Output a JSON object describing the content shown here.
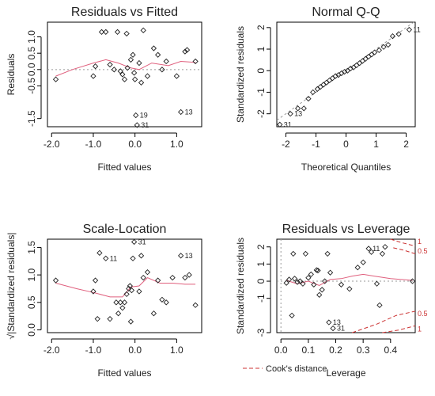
{
  "colors": {
    "points": "#222222",
    "smooth": "#e0607e",
    "reference": "#999999",
    "cook": "#cc3333"
  },
  "chart_data": [
    {
      "type": "scatter",
      "title": "Residuals vs Fitted",
      "xlabel": "Fitted values",
      "ylabel": "Residuals",
      "xlim": [
        -2.1,
        1.6
      ],
      "ylim": [
        -1.75,
        1.45
      ],
      "xticks": [
        -2.0,
        -1.0,
        0.0,
        1.0
      ],
      "xtick_labels": [
        "-2.0",
        "-1.0",
        "0.0",
        "1.0"
      ],
      "yticks": [
        -1.5,
        -0.5,
        0.5,
        1.0
      ],
      "ytick_labels": [
        "-1.5",
        "-0.5",
        "0.5",
        "1.0"
      ],
      "yticks_extra": [
        0.0
      ],
      "ytick_labels_extra": [
        "0.0"
      ],
      "marker": "diamond",
      "points": [
        {
          "x": -1.9,
          "y": -0.3
        },
        {
          "x": -1.0,
          "y": -0.2
        },
        {
          "x": -0.95,
          "y": 0.1
        },
        {
          "x": -0.8,
          "y": 1.15
        },
        {
          "x": -0.6,
          "y": 0.15
        },
        {
          "x": -0.5,
          "y": 0.0
        },
        {
          "x": -0.42,
          "y": 1.15
        },
        {
          "x": -0.35,
          "y": -0.05
        },
        {
          "x": -0.3,
          "y": -0.15
        },
        {
          "x": -0.25,
          "y": -0.3
        },
        {
          "x": -0.2,
          "y": 1.1
        },
        {
          "x": -0.18,
          "y": 0.05
        },
        {
          "x": -0.1,
          "y": 0.3
        },
        {
          "x": -0.05,
          "y": 0.45
        },
        {
          "x": -0.02,
          "y": -0.1
        },
        {
          "x": 0.0,
          "y": -0.3
        },
        {
          "x": 0.02,
          "y": -1.4,
          "label": "19"
        },
        {
          "x": 0.05,
          "y": -1.7,
          "label": "31"
        },
        {
          "x": 0.1,
          "y": 0.2
        },
        {
          "x": 0.15,
          "y": -0.4
        },
        {
          "x": 0.2,
          "y": 1.2
        },
        {
          "x": 0.3,
          "y": -0.2
        },
        {
          "x": 0.45,
          "y": 0.65
        },
        {
          "x": 0.55,
          "y": 0.45
        },
        {
          "x": 0.65,
          "y": 0.0
        },
        {
          "x": 0.75,
          "y": 0.25
        },
        {
          "x": 1.0,
          "y": -0.2
        },
        {
          "x": 1.1,
          "y": -1.3,
          "label": "13"
        },
        {
          "x": 1.2,
          "y": 0.55
        },
        {
          "x": 1.25,
          "y": 0.6
        },
        {
          "x": 1.45,
          "y": 0.25
        },
        {
          "x": -0.7,
          "y": 1.15
        }
      ],
      "smooth": [
        {
          "x": -1.9,
          "y": -0.2
        },
        {
          "x": -1.5,
          "y": 0.0
        },
        {
          "x": -1.0,
          "y": 0.2
        },
        {
          "x": -0.7,
          "y": 0.3
        },
        {
          "x": -0.4,
          "y": 0.2
        },
        {
          "x": -0.1,
          "y": 0.05
        },
        {
          "x": 0.1,
          "y": 0.0
        },
        {
          "x": 0.4,
          "y": 0.2
        },
        {
          "x": 0.8,
          "y": 0.12
        },
        {
          "x": 1.1,
          "y": 0.25
        },
        {
          "x": 1.45,
          "y": 0.22
        }
      ],
      "reference_line": {
        "type": "hline",
        "y": 0.0
      }
    },
    {
      "type": "scatter",
      "title": "Normal Q-Q",
      "xlabel": "Theoretical Quantiles",
      "ylabel": "Standardized residuals",
      "xlim": [
        -2.3,
        2.3
      ],
      "ylim": [
        -2.6,
        2.25
      ],
      "xticks": [
        -2,
        -1,
        0,
        1,
        2
      ],
      "xtick_labels": [
        "-2",
        "-1",
        "0",
        "1",
        "2"
      ],
      "yticks": [
        -2,
        -1,
        0,
        1,
        2
      ],
      "ytick_labels": [
        "-2",
        "-1",
        "0",
        "1",
        "2"
      ],
      "marker": "diamond",
      "points": [
        {
          "x": -2.2,
          "y": -2.5,
          "label": "31"
        },
        {
          "x": -1.85,
          "y": -2.0,
          "label": "13"
        },
        {
          "x": -1.6,
          "y": -1.75
        },
        {
          "x": -1.4,
          "y": -1.75
        },
        {
          "x": -1.25,
          "y": -1.3
        },
        {
          "x": -1.1,
          "y": -1.0
        },
        {
          "x": -0.95,
          "y": -0.85
        },
        {
          "x": -0.85,
          "y": -0.75
        },
        {
          "x": -0.75,
          "y": -0.65
        },
        {
          "x": -0.65,
          "y": -0.55
        },
        {
          "x": -0.55,
          "y": -0.45
        },
        {
          "x": -0.45,
          "y": -0.35
        },
        {
          "x": -0.35,
          "y": -0.25
        },
        {
          "x": -0.25,
          "y": -0.2
        },
        {
          "x": -0.15,
          "y": -0.12
        },
        {
          "x": -0.05,
          "y": -0.05
        },
        {
          "x": 0.05,
          "y": 0.0
        },
        {
          "x": 0.15,
          "y": 0.1
        },
        {
          "x": 0.25,
          "y": 0.15
        },
        {
          "x": 0.35,
          "y": 0.25
        },
        {
          "x": 0.45,
          "y": 0.35
        },
        {
          "x": 0.55,
          "y": 0.45
        },
        {
          "x": 0.65,
          "y": 0.55
        },
        {
          "x": 0.75,
          "y": 0.65
        },
        {
          "x": 0.85,
          "y": 0.75
        },
        {
          "x": 0.95,
          "y": 0.85
        },
        {
          "x": 1.1,
          "y": 0.95
        },
        {
          "x": 1.25,
          "y": 1.1
        },
        {
          "x": 1.4,
          "y": 1.2
        },
        {
          "x": 1.55,
          "y": 1.6
        },
        {
          "x": 1.75,
          "y": 1.7
        },
        {
          "x": 2.1,
          "y": 1.9,
          "label": "11"
        }
      ],
      "reference_line": {
        "type": "abline",
        "intercept": 0.0,
        "slope": 1.0
      }
    },
    {
      "type": "scatter",
      "title": "Scale-Location",
      "xlabel": "Fitted values",
      "ylabel": "√|Standardized residuals|",
      "xlim": [
        -2.1,
        1.6
      ],
      "ylim": [
        -0.05,
        1.65
      ],
      "xticks": [
        -2.0,
        -1.0,
        0.0,
        1.0
      ],
      "xtick_labels": [
        "-2.0",
        "-1.0",
        "0.0",
        "1.0"
      ],
      "yticks": [
        0.0,
        0.5,
        1.0,
        1.5
      ],
      "ytick_labels": [
        "0.0",
        "0.5",
        "1.0",
        "1.5"
      ],
      "marker": "diamond",
      "points": [
        {
          "x": -1.9,
          "y": 0.9
        },
        {
          "x": -1.0,
          "y": 0.7
        },
        {
          "x": -0.95,
          "y": 0.9
        },
        {
          "x": -0.9,
          "y": 0.2
        },
        {
          "x": -0.85,
          "y": 1.4
        },
        {
          "x": -0.7,
          "y": 1.3,
          "label": "11"
        },
        {
          "x": -0.6,
          "y": 0.2
        },
        {
          "x": -0.45,
          "y": 0.5
        },
        {
          "x": -0.4,
          "y": 0.3
        },
        {
          "x": -0.35,
          "y": 0.5
        },
        {
          "x": -0.3,
          "y": 0.4
        },
        {
          "x": -0.25,
          "y": 0.5
        },
        {
          "x": -0.2,
          "y": 0.65
        },
        {
          "x": -0.15,
          "y": 0.75
        },
        {
          "x": -0.12,
          "y": 0.8
        },
        {
          "x": -0.1,
          "y": 0.15
        },
        {
          "x": -0.08,
          "y": 0.72
        },
        {
          "x": -0.05,
          "y": 1.3
        },
        {
          "x": -0.02,
          "y": 1.6,
          "label": "31"
        },
        {
          "x": 0.1,
          "y": 0.7
        },
        {
          "x": 0.15,
          "y": 1.35
        },
        {
          "x": 0.2,
          "y": 0.95
        },
        {
          "x": 0.3,
          "y": 1.05
        },
        {
          "x": 0.45,
          "y": 0.3
        },
        {
          "x": 0.55,
          "y": 0.9
        },
        {
          "x": 0.65,
          "y": 0.55
        },
        {
          "x": 0.75,
          "y": 0.5
        },
        {
          "x": 0.9,
          "y": 0.95
        },
        {
          "x": 1.1,
          "y": 1.35,
          "label": "13"
        },
        {
          "x": 1.2,
          "y": 0.95
        },
        {
          "x": 1.3,
          "y": 1.0
        },
        {
          "x": 1.45,
          "y": 0.45
        }
      ],
      "smooth": [
        {
          "x": -1.9,
          "y": 0.85
        },
        {
          "x": -1.4,
          "y": 0.75
        },
        {
          "x": -1.0,
          "y": 0.68
        },
        {
          "x": -0.6,
          "y": 0.6
        },
        {
          "x": -0.3,
          "y": 0.6
        },
        {
          "x": -0.1,
          "y": 0.78
        },
        {
          "x": 0.1,
          "y": 0.8
        },
        {
          "x": 0.3,
          "y": 0.95
        },
        {
          "x": 0.6,
          "y": 0.85
        },
        {
          "x": 0.9,
          "y": 0.85
        },
        {
          "x": 1.2,
          "y": 0.83
        },
        {
          "x": 1.45,
          "y": 0.83
        }
      ]
    },
    {
      "type": "scatter",
      "title": "Residuals vs Leverage",
      "xlabel": "Leverage",
      "ylabel": "Standardized residuals",
      "xlim": [
        -0.015,
        0.49
      ],
      "ylim": [
        -3.0,
        2.45
      ],
      "xticks": [
        0.0,
        0.1,
        0.2,
        0.3,
        0.4
      ],
      "xtick_labels": [
        "0.0",
        "0.1",
        "0.2",
        "0.3",
        "0.4"
      ],
      "yticks": [
        -3,
        -1,
        0,
        1,
        2
      ],
      "ytick_labels": [
        "-3",
        "-1",
        "0",
        "1",
        "2"
      ],
      "marker": "diamond",
      "points": [
        {
          "x": 0.02,
          "y": -0.1
        },
        {
          "x": 0.03,
          "y": 0.1
        },
        {
          "x": 0.04,
          "y": -2.0
        },
        {
          "x": 0.045,
          "y": 1.6
        },
        {
          "x": 0.05,
          "y": 0.15
        },
        {
          "x": 0.06,
          "y": -0.05
        },
        {
          "x": 0.07,
          "y": 0.0
        },
        {
          "x": 0.08,
          "y": -0.15
        },
        {
          "x": 0.09,
          "y": 1.6
        },
        {
          "x": 0.1,
          "y": 0.2
        },
        {
          "x": 0.11,
          "y": 0.4
        },
        {
          "x": 0.12,
          "y": -0.2
        },
        {
          "x": 0.13,
          "y": 0.65
        },
        {
          "x": 0.135,
          "y": 0.62
        },
        {
          "x": 0.14,
          "y": -0.8
        },
        {
          "x": 0.15,
          "y": -0.5
        },
        {
          "x": 0.16,
          "y": 0.0
        },
        {
          "x": 0.17,
          "y": 1.6
        },
        {
          "x": 0.175,
          "y": -2.4,
          "label": "13"
        },
        {
          "x": 0.18,
          "y": 0.5
        },
        {
          "x": 0.19,
          "y": -2.75,
          "label": "31"
        },
        {
          "x": 0.22,
          "y": -0.2
        },
        {
          "x": 0.25,
          "y": -0.45
        },
        {
          "x": 0.28,
          "y": 0.8
        },
        {
          "x": 0.3,
          "y": 1.1
        },
        {
          "x": 0.32,
          "y": 1.9,
          "label": "11"
        },
        {
          "x": 0.33,
          "y": 1.7
        },
        {
          "x": 0.35,
          "y": -0.15
        },
        {
          "x": 0.36,
          "y": -1.4
        },
        {
          "x": 0.37,
          "y": 1.6
        },
        {
          "x": 0.38,
          "y": 2.0
        },
        {
          "x": 0.48,
          "y": 0.0
        }
      ],
      "smooth": [
        {
          "x": 0.02,
          "y": 0.05
        },
        {
          "x": 0.06,
          "y": -0.15
        },
        {
          "x": 0.1,
          "y": 0.0
        },
        {
          "x": 0.14,
          "y": -0.25
        },
        {
          "x": 0.18,
          "y": 0.1
        },
        {
          "x": 0.22,
          "y": 0.15
        },
        {
          "x": 0.26,
          "y": 0.3
        },
        {
          "x": 0.3,
          "y": 0.4
        },
        {
          "x": 0.34,
          "y": 0.3
        },
        {
          "x": 0.4,
          "y": 0.15
        },
        {
          "x": 0.48,
          "y": 0.05
        }
      ],
      "cooks_distance": {
        "legend": "Cook's distance",
        "contour_labels": [
          "1",
          "0.5",
          "0.5",
          "1"
        ]
      }
    }
  ]
}
